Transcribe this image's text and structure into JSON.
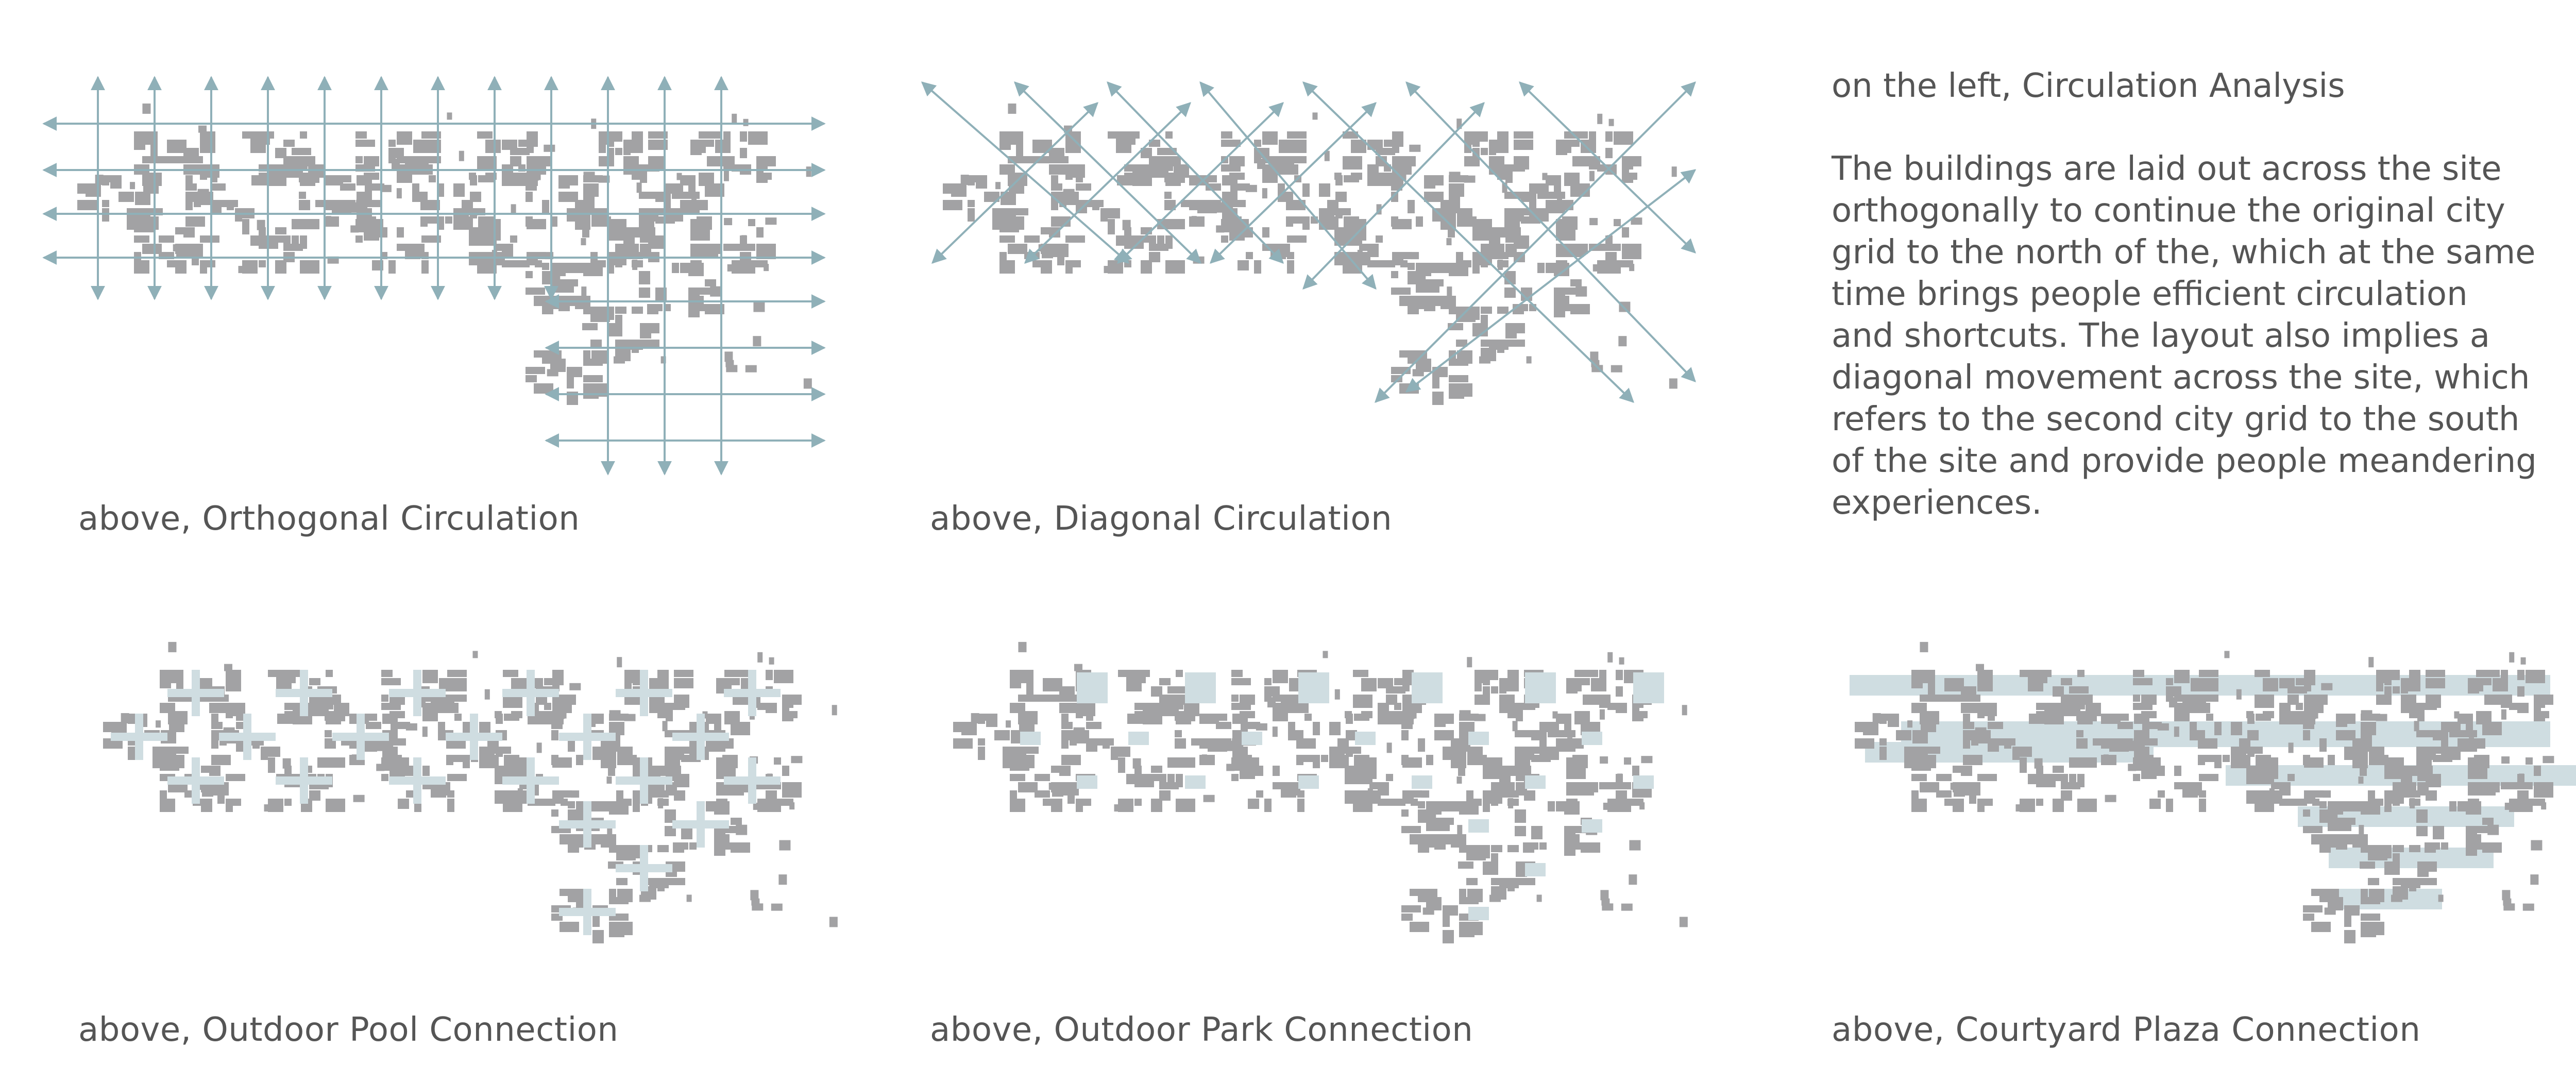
{
  "colors": {
    "building": "#a2a2a4",
    "circulation": "#8fb0b8",
    "connection": "#cfdde1",
    "text": "#555555"
  },
  "panels": [
    {
      "caption": "above, Orthogonal Circulation",
      "overlay": "orthogonal"
    },
    {
      "caption": "above, Diagonal Circulation",
      "overlay": "diagonal"
    },
    {
      "caption": "above, Outdoor Pool Connection",
      "overlay": "pool"
    },
    {
      "caption": "above, Outdoor Park Connection",
      "overlay": "park"
    },
    {
      "caption": "above, Courtyard Plaza Connection",
      "overlay": "plaza"
    }
  ],
  "analysis": {
    "title": "on the left, Circulation Analysis",
    "lines": [
      "The buildings are laid out across the site",
      "orthogonally to continue the original city",
      "grid to the north of the, which at the same",
      "time brings people efficient circulation",
      "and shortcuts. The layout also implies a",
      "diagonal movement across the site, which",
      "refers to the second city grid to the south",
      "of the site and provide people meandering",
      "experiences."
    ]
  }
}
